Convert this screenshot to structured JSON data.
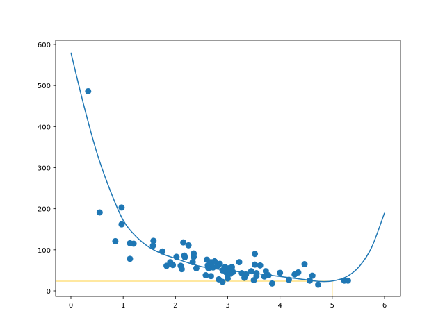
{
  "chart_data": {
    "type": "scatter",
    "title": "",
    "xlabel": "",
    "ylabel": "",
    "xlim": [
      -0.3,
      6.3
    ],
    "ylim": [
      -15,
      610
    ],
    "grid": false,
    "xticks": [
      "0",
      "1",
      "2",
      "3",
      "4",
      "5",
      "6"
    ],
    "yticks": [
      "0",
      "100",
      "200",
      "300",
      "400",
      "500",
      "600"
    ],
    "colors": {
      "points": "#1f77b4",
      "curve": "#1f77b4",
      "reference": "#ffc000"
    },
    "points": [
      [
        0.33,
        486
      ],
      [
        0.55,
        191
      ],
      [
        0.85,
        121
      ],
      [
        0.97,
        203
      ],
      [
        0.97,
        162
      ],
      [
        1.13,
        116
      ],
      [
        1.13,
        78
      ],
      [
        1.2,
        115
      ],
      [
        1.57,
        110
      ],
      [
        1.58,
        122
      ],
      [
        1.75,
        96
      ],
      [
        1.83,
        61
      ],
      [
        1.9,
        70
      ],
      [
        1.95,
        63
      ],
      [
        2.02,
        83
      ],
      [
        2.1,
        61
      ],
      [
        2.12,
        53
      ],
      [
        2.15,
        118
      ],
      [
        2.17,
        86
      ],
      [
        2.18,
        82
      ],
      [
        2.25,
        111
      ],
      [
        2.33,
        70
      ],
      [
        2.35,
        91
      ],
      [
        2.35,
        83
      ],
      [
        2.4,
        55
      ],
      [
        2.58,
        38
      ],
      [
        2.6,
        76
      ],
      [
        2.62,
        62
      ],
      [
        2.63,
        55
      ],
      [
        2.68,
        70
      ],
      [
        2.68,
        36
      ],
      [
        2.72,
        57
      ],
      [
        2.75,
        72
      ],
      [
        2.8,
        60
      ],
      [
        2.83,
        28
      ],
      [
        2.85,
        66
      ],
      [
        2.9,
        22
      ],
      [
        2.9,
        50
      ],
      [
        2.95,
        58
      ],
      [
        2.97,
        45
      ],
      [
        3.0,
        38
      ],
      [
        3.0,
        30
      ],
      [
        3.02,
        55
      ],
      [
        3.05,
        50
      ],
      [
        3.05,
        42
      ],
      [
        3.08,
        58
      ],
      [
        3.1,
        46
      ],
      [
        3.22,
        70
      ],
      [
        3.27,
        43
      ],
      [
        3.32,
        32
      ],
      [
        3.35,
        40
      ],
      [
        3.45,
        48
      ],
      [
        3.5,
        26
      ],
      [
        3.52,
        90
      ],
      [
        3.52,
        64
      ],
      [
        3.55,
        36
      ],
      [
        3.55,
        43
      ],
      [
        3.62,
        62
      ],
      [
        3.7,
        35
      ],
      [
        3.73,
        48
      ],
      [
        3.78,
        38
      ],
      [
        3.85,
        18
      ],
      [
        4.0,
        44
      ],
      [
        4.17,
        27
      ],
      [
        4.28,
        40
      ],
      [
        4.35,
        45
      ],
      [
        4.47,
        65
      ],
      [
        4.57,
        25
      ],
      [
        4.62,
        37
      ],
      [
        4.73,
        15
      ],
      [
        5.23,
        25
      ],
      [
        5.3,
        25
      ]
    ],
    "fit_curve": [
      [
        0,
        580
      ],
      [
        0.25,
        450
      ],
      [
        0.5,
        335
      ],
      [
        0.75,
        245
      ],
      [
        1,
        172
      ],
      [
        1.25,
        132
      ],
      [
        1.5,
        106
      ],
      [
        1.75,
        90
      ],
      [
        2,
        79
      ],
      [
        2.25,
        68
      ],
      [
        2.5,
        59
      ],
      [
        2.75,
        54
      ],
      [
        3,
        50
      ],
      [
        3.25,
        46
      ],
      [
        3.5,
        43
      ],
      [
        3.75,
        39
      ],
      [
        4,
        35
      ],
      [
        4.25,
        31
      ],
      [
        4.5,
        27
      ],
      [
        4.75,
        23
      ],
      [
        5,
        24
      ],
      [
        5.25,
        33
      ],
      [
        5.5,
        57
      ],
      [
        5.75,
        105
      ],
      [
        6,
        190
      ]
    ],
    "reference": {
      "x": 5,
      "y": 23.6
    }
  }
}
